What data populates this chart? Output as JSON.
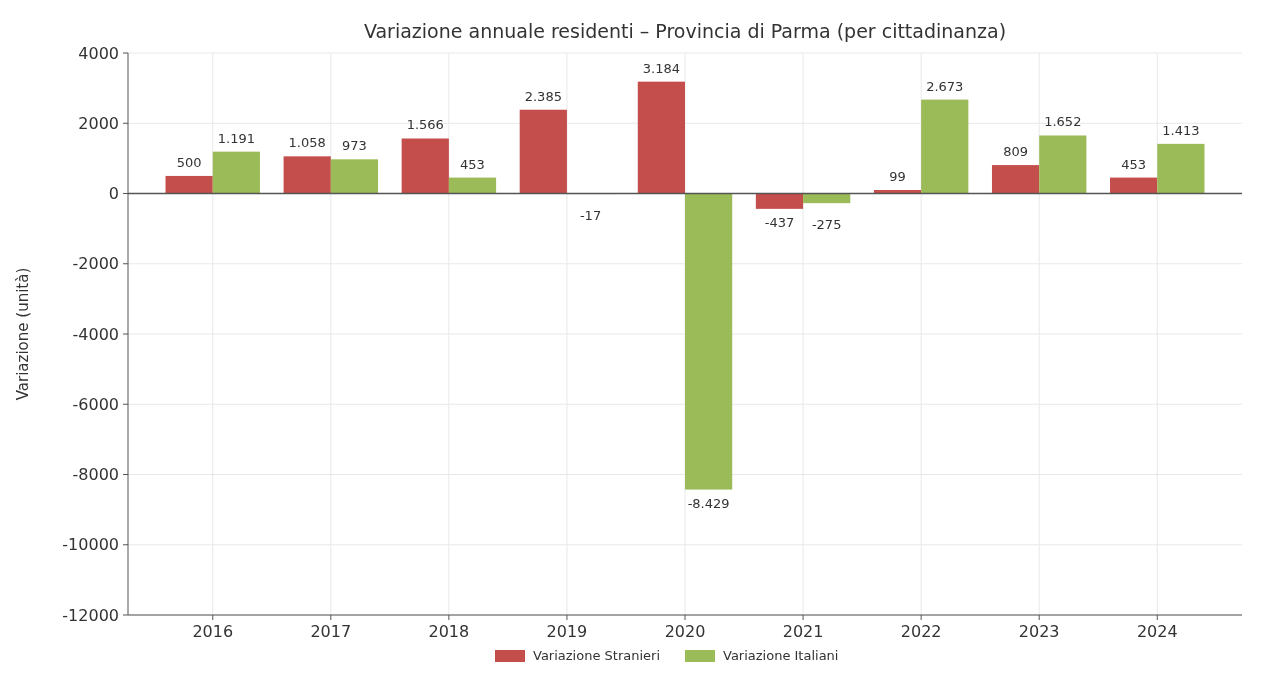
{
  "chart_data": {
    "type": "bar",
    "title": "Variazione annuale residenti – Provincia di Parma (per cittadinanza)",
    "ylabel": "Variazione (unità)",
    "categories": [
      "2016",
      "2017",
      "2018",
      "2019",
      "2020",
      "2021",
      "2022",
      "2023",
      "2024"
    ],
    "series": [
      {
        "name": "Variazione Stranieri",
        "color": "#c44e4b",
        "values": [
          500,
          1058,
          1566,
          2385,
          3184,
          -437,
          99,
          809,
          453
        ],
        "value_labels": [
          "500",
          "1.058",
          "1.566",
          "2.385",
          "3.184",
          "-437",
          "99",
          "809",
          "453"
        ]
      },
      {
        "name": "Variazione Italiani",
        "color": "#9bbb59",
        "values": [
          1191,
          973,
          453,
          -17,
          -8429,
          -275,
          2673,
          1652,
          1413
        ],
        "value_labels": [
          "1.191",
          "973",
          "453",
          "-17",
          "-8.429",
          "-275",
          "2.673",
          "1.652",
          "1.413"
        ]
      }
    ],
    "ylim": [
      -12000,
      4000
    ],
    "yticks": [
      -12000,
      -10000,
      -8000,
      -6000,
      -4000,
      -2000,
      0,
      2000,
      4000
    ],
    "grid": true,
    "legend": "bottom"
  }
}
